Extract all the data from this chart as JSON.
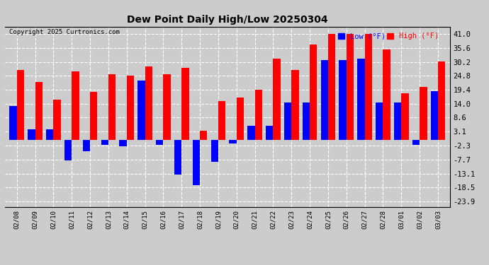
{
  "title": "Dew Point Daily High/Low 20250304",
  "copyright": "Copyright 2025 Curtronics.com",
  "legend_low": "Low (°F)",
  "legend_high": "High (°F)",
  "color_low": "blue",
  "color_high": "red",
  "background_color": "#cccccc",
  "yticks": [
    41.0,
    35.6,
    30.2,
    24.8,
    19.4,
    14.0,
    8.6,
    3.1,
    -2.3,
    -7.7,
    -13.1,
    -18.5,
    -23.9
  ],
  "ylim": [
    -26.0,
    44.0
  ],
  "dates": [
    "02/08",
    "02/09",
    "02/10",
    "02/11",
    "02/12",
    "02/13",
    "02/14",
    "02/15",
    "02/16",
    "02/17",
    "02/18",
    "02/19",
    "02/20",
    "02/21",
    "02/22",
    "02/23",
    "02/24",
    "02/25",
    "02/26",
    "02/27",
    "02/28",
    "03/01",
    "03/02",
    "03/03"
  ],
  "high_vals": [
    27.0,
    22.5,
    15.5,
    26.5,
    18.5,
    25.5,
    25.0,
    28.5,
    25.5,
    28.0,
    3.5,
    15.0,
    16.5,
    19.5,
    31.5,
    27.0,
    37.0,
    41.0,
    41.0,
    41.0,
    35.0,
    18.0,
    20.5,
    30.5
  ],
  "low_vals": [
    13.0,
    4.0,
    4.0,
    -8.0,
    -4.5,
    -2.0,
    -2.5,
    23.0,
    -2.0,
    -13.5,
    -17.5,
    -8.5,
    -1.5,
    5.5,
    5.5,
    14.5,
    14.5,
    31.0,
    31.0,
    31.5,
    14.5,
    14.5,
    -2.0,
    19.0
  ]
}
